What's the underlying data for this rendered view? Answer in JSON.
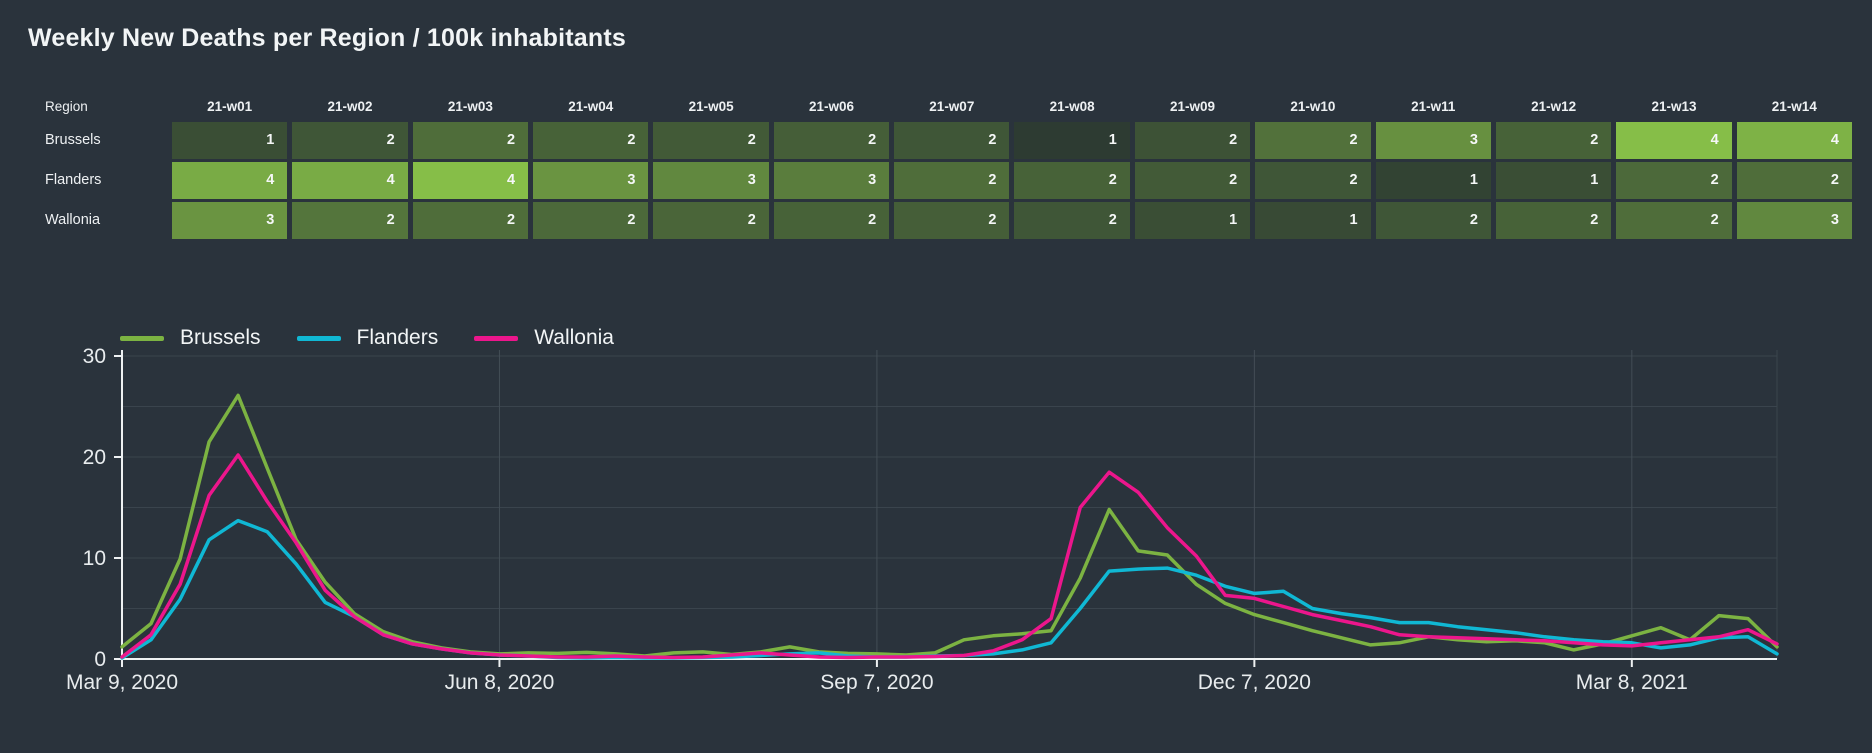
{
  "page": {
    "title": "Weekly New Deaths per Region / 100k inhabitants",
    "background": "#2a333c"
  },
  "table": {
    "region_header": "Region",
    "week_headers": [
      "21-w01",
      "21-w02",
      "21-w03",
      "21-w04",
      "21-w05",
      "21-w06",
      "21-w07",
      "21-w08",
      "21-w09",
      "21-w10",
      "21-w11",
      "21-w12",
      "21-w13",
      "21-w14"
    ],
    "rows": [
      {
        "region": "Brussels",
        "cells": [
          {
            "value": "1",
            "color": "#3A4E35"
          },
          {
            "value": "2",
            "color": "#3F5637"
          },
          {
            "value": "2",
            "color": "#4F6D3A"
          },
          {
            "value": "2",
            "color": "#476238"
          },
          {
            "value": "2",
            "color": "#425A37"
          },
          {
            "value": "2",
            "color": "#455E38"
          },
          {
            "value": "2",
            "color": "#3F5637"
          },
          {
            "value": "1",
            "color": "#2D3B32"
          },
          {
            "value": "2",
            "color": "#3D5236"
          },
          {
            "value": "2",
            "color": "#52713B"
          },
          {
            "value": "3",
            "color": "#679040"
          },
          {
            "value": "2",
            "color": "#476238"
          },
          {
            "value": "4",
            "color": "#86BE48"
          },
          {
            "value": "4",
            "color": "#7EB246"
          }
        ]
      },
      {
        "region": "Flanders",
        "cells": [
          {
            "value": "4",
            "color": "#79AB45"
          },
          {
            "value": "4",
            "color": "#79AB45"
          },
          {
            "value": "4",
            "color": "#86BE48"
          },
          {
            "value": "3",
            "color": "#6A9441"
          },
          {
            "value": "3",
            "color": "#61883F"
          },
          {
            "value": "3",
            "color": "#5A7D3D"
          },
          {
            "value": "2",
            "color": "#4F6D3A"
          },
          {
            "value": "2",
            "color": "#476238"
          },
          {
            "value": "2",
            "color": "#425A37"
          },
          {
            "value": "2",
            "color": "#3F5637"
          },
          {
            "value": "1",
            "color": "#324333"
          },
          {
            "value": "1",
            "color": "#3A4E35"
          },
          {
            "value": "2",
            "color": "#4C693A"
          },
          {
            "value": "2",
            "color": "#4F6D3A"
          }
        ]
      },
      {
        "region": "Wallonia",
        "cells": [
          {
            "value": "3",
            "color": "#6A9441"
          },
          {
            "value": "2",
            "color": "#54753C"
          },
          {
            "value": "2",
            "color": "#4F6D3A"
          },
          {
            "value": "2",
            "color": "#4C693A"
          },
          {
            "value": "2",
            "color": "#4A6539"
          },
          {
            "value": "2",
            "color": "#476238"
          },
          {
            "value": "2",
            "color": "#455E38"
          },
          {
            "value": "2",
            "color": "#3F5637"
          },
          {
            "value": "1",
            "color": "#3A4E35"
          },
          {
            "value": "1",
            "color": "#384A35"
          },
          {
            "value": "2",
            "color": "#3F5637"
          },
          {
            "value": "2",
            "color": "#476238"
          },
          {
            "value": "2",
            "color": "#4F6D3A"
          },
          {
            "value": "3",
            "color": "#61883F"
          }
        ]
      }
    ]
  },
  "chart_data": {
    "type": "line",
    "title": "Weekly New Deaths per Region / 100k inhabitants",
    "x_axis": {
      "tick_labels": [
        "Mar 9, 2020",
        "Jun 8, 2020",
        "Sep 7, 2020",
        "Dec 7, 2020",
        "Mar 8, 2021"
      ],
      "tick_weeks": [
        0,
        13,
        26,
        39,
        52
      ],
      "total_weeks": 57,
      "unit": "week"
    },
    "y_axis": {
      "tick_labels": [
        "0",
        "10",
        "20",
        "30"
      ],
      "ticks": [
        0,
        10,
        20,
        30
      ],
      "range": [
        0,
        35.5
      ],
      "gridline_step": 5
    },
    "legend_position": "top",
    "grid": true,
    "series": [
      {
        "name": "Brussels",
        "color": "#7cb342",
        "values": [
          1.2,
          3.5,
          9.9,
          21.5,
          26.1,
          18.9,
          11.8,
          7.6,
          4.5,
          2.7,
          1.7,
          1.1,
          0.7,
          0.5,
          0.6,
          0.55,
          0.65,
          0.5,
          0.3,
          0.6,
          0.7,
          0.45,
          0.7,
          1.2,
          0.7,
          0.55,
          0.5,
          0.4,
          0.6,
          1.9,
          2.3,
          2.5,
          2.8,
          8.0,
          14.8,
          10.7,
          10.3,
          7.4,
          5.5,
          4.4,
          3.6,
          2.8,
          2.1,
          1.4,
          1.6,
          2.2,
          1.9,
          1.7,
          1.8,
          1.6,
          0.9,
          1.5,
          2.3,
          3.1,
          1.9,
          4.3,
          4.0,
          1.2
        ]
      },
      {
        "name": "Flanders",
        "color": "#10b8d4",
        "values": [
          0.1,
          1.9,
          5.9,
          11.8,
          13.7,
          12.6,
          9.4,
          5.6,
          4.2,
          2.4,
          1.5,
          1.0,
          0.6,
          0.4,
          0.3,
          0.15,
          0.1,
          0.15,
          0.1,
          0.1,
          0.15,
          0.2,
          0.35,
          0.5,
          0.6,
          0.3,
          0.2,
          0.2,
          0.3,
          0.35,
          0.5,
          0.9,
          1.6,
          5.0,
          8.7,
          8.9,
          9.0,
          8.3,
          7.2,
          6.5,
          6.7,
          5.0,
          4.5,
          4.1,
          3.6,
          3.6,
          3.2,
          2.9,
          2.6,
          2.2,
          1.9,
          1.7,
          1.6,
          1.1,
          1.4,
          2.1,
          2.2,
          0.5
        ]
      },
      {
        "name": "Wallonia",
        "color": "#ec168c",
        "values": [
          0.2,
          2.4,
          7.4,
          16.2,
          20.2,
          15.6,
          11.5,
          6.8,
          4.2,
          2.4,
          1.5,
          1.0,
          0.6,
          0.4,
          0.3,
          0.2,
          0.2,
          0.3,
          0.2,
          0.15,
          0.2,
          0.4,
          0.6,
          0.4,
          0.2,
          0.15,
          0.2,
          0.2,
          0.25,
          0.35,
          0.8,
          1.9,
          4.0,
          15.0,
          18.5,
          16.5,
          13.0,
          10.2,
          6.3,
          6.0,
          5.2,
          4.4,
          3.8,
          3.2,
          2.4,
          2.2,
          2.1,
          2.0,
          1.9,
          1.8,
          1.6,
          1.4,
          1.3,
          1.6,
          1.9,
          2.2,
          2.9,
          1.5
        ]
      }
    ],
    "colors": {
      "background": "#2a333c",
      "grid": "#3a444d",
      "grid_major": "#434d56",
      "axis": "#eef1f2",
      "tick_text": "#e8ecee"
    }
  }
}
